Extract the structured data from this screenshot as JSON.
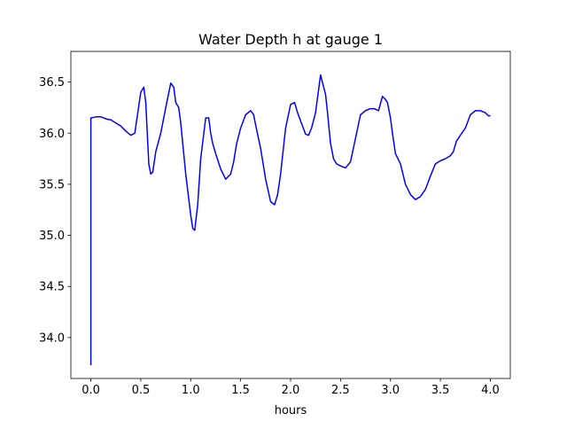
{
  "chart_data": {
    "type": "line",
    "title": "Water Depth h at gauge 1",
    "xlabel": "hours",
    "ylabel": "",
    "xlim": [
      -0.2,
      4.2
    ],
    "ylim": [
      33.6,
      36.8
    ],
    "xticks": [
      0.0,
      0.5,
      1.0,
      1.5,
      2.0,
      2.5,
      3.0,
      3.5,
      4.0
    ],
    "xtick_labels": [
      "0.0",
      "0.5",
      "1.0",
      "1.5",
      "2.0",
      "2.5",
      "3.0",
      "3.5",
      "4.0"
    ],
    "yticks": [
      34.0,
      34.5,
      35.0,
      35.5,
      36.0,
      36.5
    ],
    "ytick_labels": [
      "34.0",
      "34.5",
      "35.0",
      "35.5",
      "36.0",
      "36.5"
    ],
    "grid": false,
    "series": [
      {
        "color": "#0000ff",
        "x": [
          0.0,
          0.0,
          0.0,
          0.01,
          0.05,
          0.1,
          0.15,
          0.2,
          0.25,
          0.3,
          0.35,
          0.4,
          0.44,
          0.47,
          0.5,
          0.53,
          0.55,
          0.58,
          0.6,
          0.62,
          0.65,
          0.7,
          0.75,
          0.8,
          0.83,
          0.85,
          0.88,
          0.9,
          0.95,
          1.0,
          1.02,
          1.04,
          1.07,
          1.1,
          1.15,
          1.18,
          1.2,
          1.22,
          1.25,
          1.3,
          1.35,
          1.4,
          1.43,
          1.46,
          1.5,
          1.55,
          1.6,
          1.63,
          1.65,
          1.7,
          1.75,
          1.8,
          1.84,
          1.87,
          1.9,
          1.95,
          2.0,
          2.04,
          2.07,
          2.1,
          2.15,
          2.18,
          2.21,
          2.25,
          2.3,
          2.35,
          2.37,
          2.4,
          2.43,
          2.46,
          2.5,
          2.55,
          2.6,
          2.65,
          2.7,
          2.75,
          2.8,
          2.84,
          2.88,
          2.92,
          2.95,
          2.97,
          3.0,
          3.02,
          3.05,
          3.1,
          3.15,
          3.2,
          3.25,
          3.3,
          3.35,
          3.4,
          3.45,
          3.5,
          3.55,
          3.6,
          3.63,
          3.66,
          3.7,
          3.75,
          3.8,
          3.85,
          3.9,
          3.95,
          3.98,
          4.0
        ],
        "y": [
          33.73,
          36.14,
          36.15,
          36.15,
          36.16,
          36.16,
          36.14,
          36.13,
          36.1,
          36.07,
          36.02,
          35.98,
          36.0,
          36.2,
          36.4,
          36.45,
          36.3,
          35.7,
          35.6,
          35.62,
          35.82,
          36.0,
          36.25,
          36.49,
          36.45,
          36.3,
          36.25,
          36.1,
          35.6,
          35.2,
          35.07,
          35.05,
          35.3,
          35.75,
          36.15,
          36.15,
          36.0,
          35.9,
          35.8,
          35.65,
          35.55,
          35.6,
          35.72,
          35.9,
          36.05,
          36.18,
          36.22,
          36.18,
          36.08,
          35.85,
          35.55,
          35.33,
          35.3,
          35.4,
          35.6,
          36.05,
          36.28,
          36.3,
          36.2,
          36.12,
          35.99,
          35.98,
          36.05,
          36.2,
          36.57,
          36.38,
          36.2,
          35.9,
          35.75,
          35.7,
          35.68,
          35.66,
          35.72,
          35.95,
          36.18,
          36.22,
          36.24,
          36.24,
          36.22,
          36.36,
          36.33,
          36.3,
          36.15,
          36.0,
          35.8,
          35.7,
          35.5,
          35.4,
          35.35,
          35.38,
          35.45,
          35.58,
          35.7,
          35.73,
          35.75,
          35.78,
          35.82,
          35.92,
          35.98,
          36.05,
          36.18,
          36.22,
          36.22,
          36.2,
          36.17,
          36.17
        ]
      }
    ]
  }
}
